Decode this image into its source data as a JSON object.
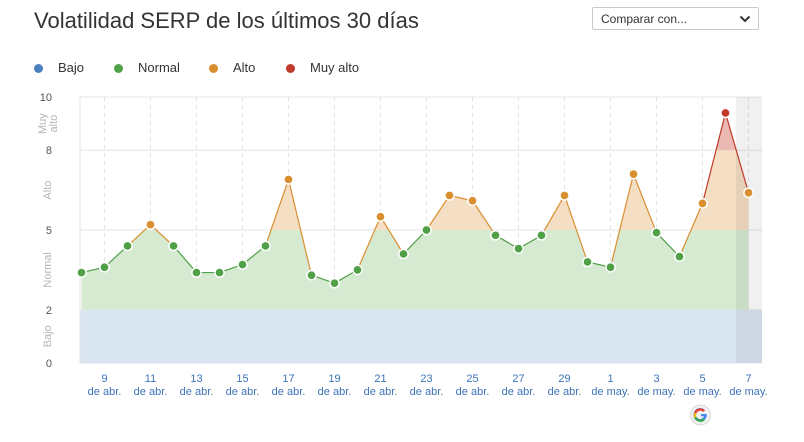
{
  "header": {
    "title": "Volatilidad SERP de los últimos 30 días",
    "compare_label": "Comparar con..."
  },
  "legend": {
    "items": [
      {
        "label": "Bajo",
        "color": "#4a7fc1"
      },
      {
        "label": "Normal",
        "color": "#4fa047"
      },
      {
        "label": "Alto",
        "color": "#d98e2f"
      },
      {
        "label": "Muy alto",
        "color": "#c0392b"
      }
    ]
  },
  "chart_data": {
    "type": "line",
    "title": "Volatilidad SERP de los últimos 30 días",
    "ylim": [
      0,
      10
    ],
    "yticks": [
      0,
      2,
      5,
      8,
      10
    ],
    "grid": true,
    "legend_position": "top-left",
    "zones": [
      {
        "label": "Bajo",
        "from": 0,
        "to": 2,
        "color": "#4a7fc1"
      },
      {
        "label": "Normal",
        "from": 2,
        "to": 5,
        "color": "#4fa047"
      },
      {
        "label": "Alto",
        "from": 5,
        "to": 8,
        "color": "#d98e2f"
      },
      {
        "label": "Muy alto",
        "from": 8,
        "to": 10,
        "color": "#c0392b"
      }
    ],
    "x": [
      "8 abr",
      "9 abr",
      "10 abr",
      "11 abr",
      "12 abr",
      "13 abr",
      "14 abr",
      "15 abr",
      "16 abr",
      "17 abr",
      "18 abr",
      "19 abr",
      "20 abr",
      "21 abr",
      "22 abr",
      "23 abr",
      "24 abr",
      "25 abr",
      "26 abr",
      "27 abr",
      "28 abr",
      "29 abr",
      "30 abr",
      "1 may",
      "2 may",
      "3 may",
      "4 may",
      "5 may",
      "6 may",
      "7 may"
    ],
    "values": [
      3.4,
      3.6,
      4.4,
      5.2,
      4.4,
      3.4,
      3.4,
      3.7,
      4.4,
      6.9,
      3.3,
      3.0,
      3.5,
      5.5,
      4.1,
      5.0,
      6.3,
      6.1,
      4.8,
      4.3,
      4.8,
      6.3,
      3.8,
      3.6,
      7.1,
      4.9,
      4.0,
      6.0,
      9.4,
      6.4
    ],
    "xtick_labels": [
      {
        "index": 1,
        "day": "9",
        "month": "de abr."
      },
      {
        "index": 3,
        "day": "11",
        "month": "de abr."
      },
      {
        "index": 5,
        "day": "13",
        "month": "de abr."
      },
      {
        "index": 7,
        "day": "15",
        "month": "de abr."
      },
      {
        "index": 9,
        "day": "17",
        "month": "de abr."
      },
      {
        "index": 11,
        "day": "19",
        "month": "de abr."
      },
      {
        "index": 13,
        "day": "21",
        "month": "de abr."
      },
      {
        "index": 15,
        "day": "23",
        "month": "de abr."
      },
      {
        "index": 17,
        "day": "25",
        "month": "de abr."
      },
      {
        "index": 19,
        "day": "27",
        "month": "de abr."
      },
      {
        "index": 21,
        "day": "29",
        "month": "de abr."
      },
      {
        "index": 23,
        "day": "1",
        "month": "de may."
      },
      {
        "index": 25,
        "day": "3",
        "month": "de may."
      },
      {
        "index": 27,
        "day": "5",
        "month": "de may."
      },
      {
        "index": 29,
        "day": "7",
        "month": "de may."
      }
    ],
    "google_update_index": 27,
    "google_marker_icon": "google-icon",
    "highlight_last_day": true
  }
}
